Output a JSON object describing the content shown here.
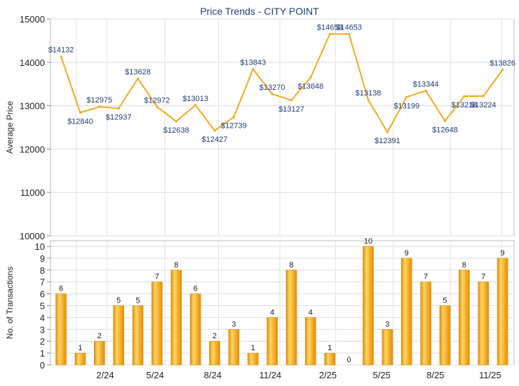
{
  "chart_data": [
    {
      "type": "line",
      "title": "Price Trends - CITY POINT",
      "ylabel": "Average Price",
      "ylim": [
        10000,
        15000
      ],
      "yticks": [
        10000,
        11000,
        12000,
        13000,
        14000,
        15000
      ],
      "grid": true,
      "line_color": "#f5a81c",
      "value_prefix": "$",
      "x_ticks": [
        "2/24",
        "5/24",
        "8/24",
        "11/24",
        "2/25",
        "5/25",
        "8/25",
        "11/25"
      ],
      "values": [
        14132,
        12840,
        12975,
        12937,
        13628,
        12972,
        12638,
        13013,
        12427,
        12739,
        13843,
        13270,
        13127,
        13648,
        14653,
        14653,
        13138,
        12391,
        13199,
        13344,
        12648,
        13218,
        13224,
        13826
      ]
    },
    {
      "type": "bar",
      "ylabel": "No. of Transactions",
      "ylim": [
        0,
        10
      ],
      "yticks": [
        0,
        1,
        2,
        3,
        4,
        5,
        6,
        7,
        8,
        9,
        10
      ],
      "grid": true,
      "bar_color": "#f5a81c",
      "x_ticks": [
        "2/24",
        "5/24",
        "8/24",
        "11/24",
        "2/25",
        "5/25",
        "8/25",
        "11/25"
      ],
      "values": [
        6,
        1,
        2,
        5,
        5,
        7,
        8,
        6,
        2,
        3,
        1,
        4,
        8,
        4,
        1,
        0,
        10,
        3,
        9,
        7,
        5,
        8,
        7,
        9
      ]
    }
  ]
}
